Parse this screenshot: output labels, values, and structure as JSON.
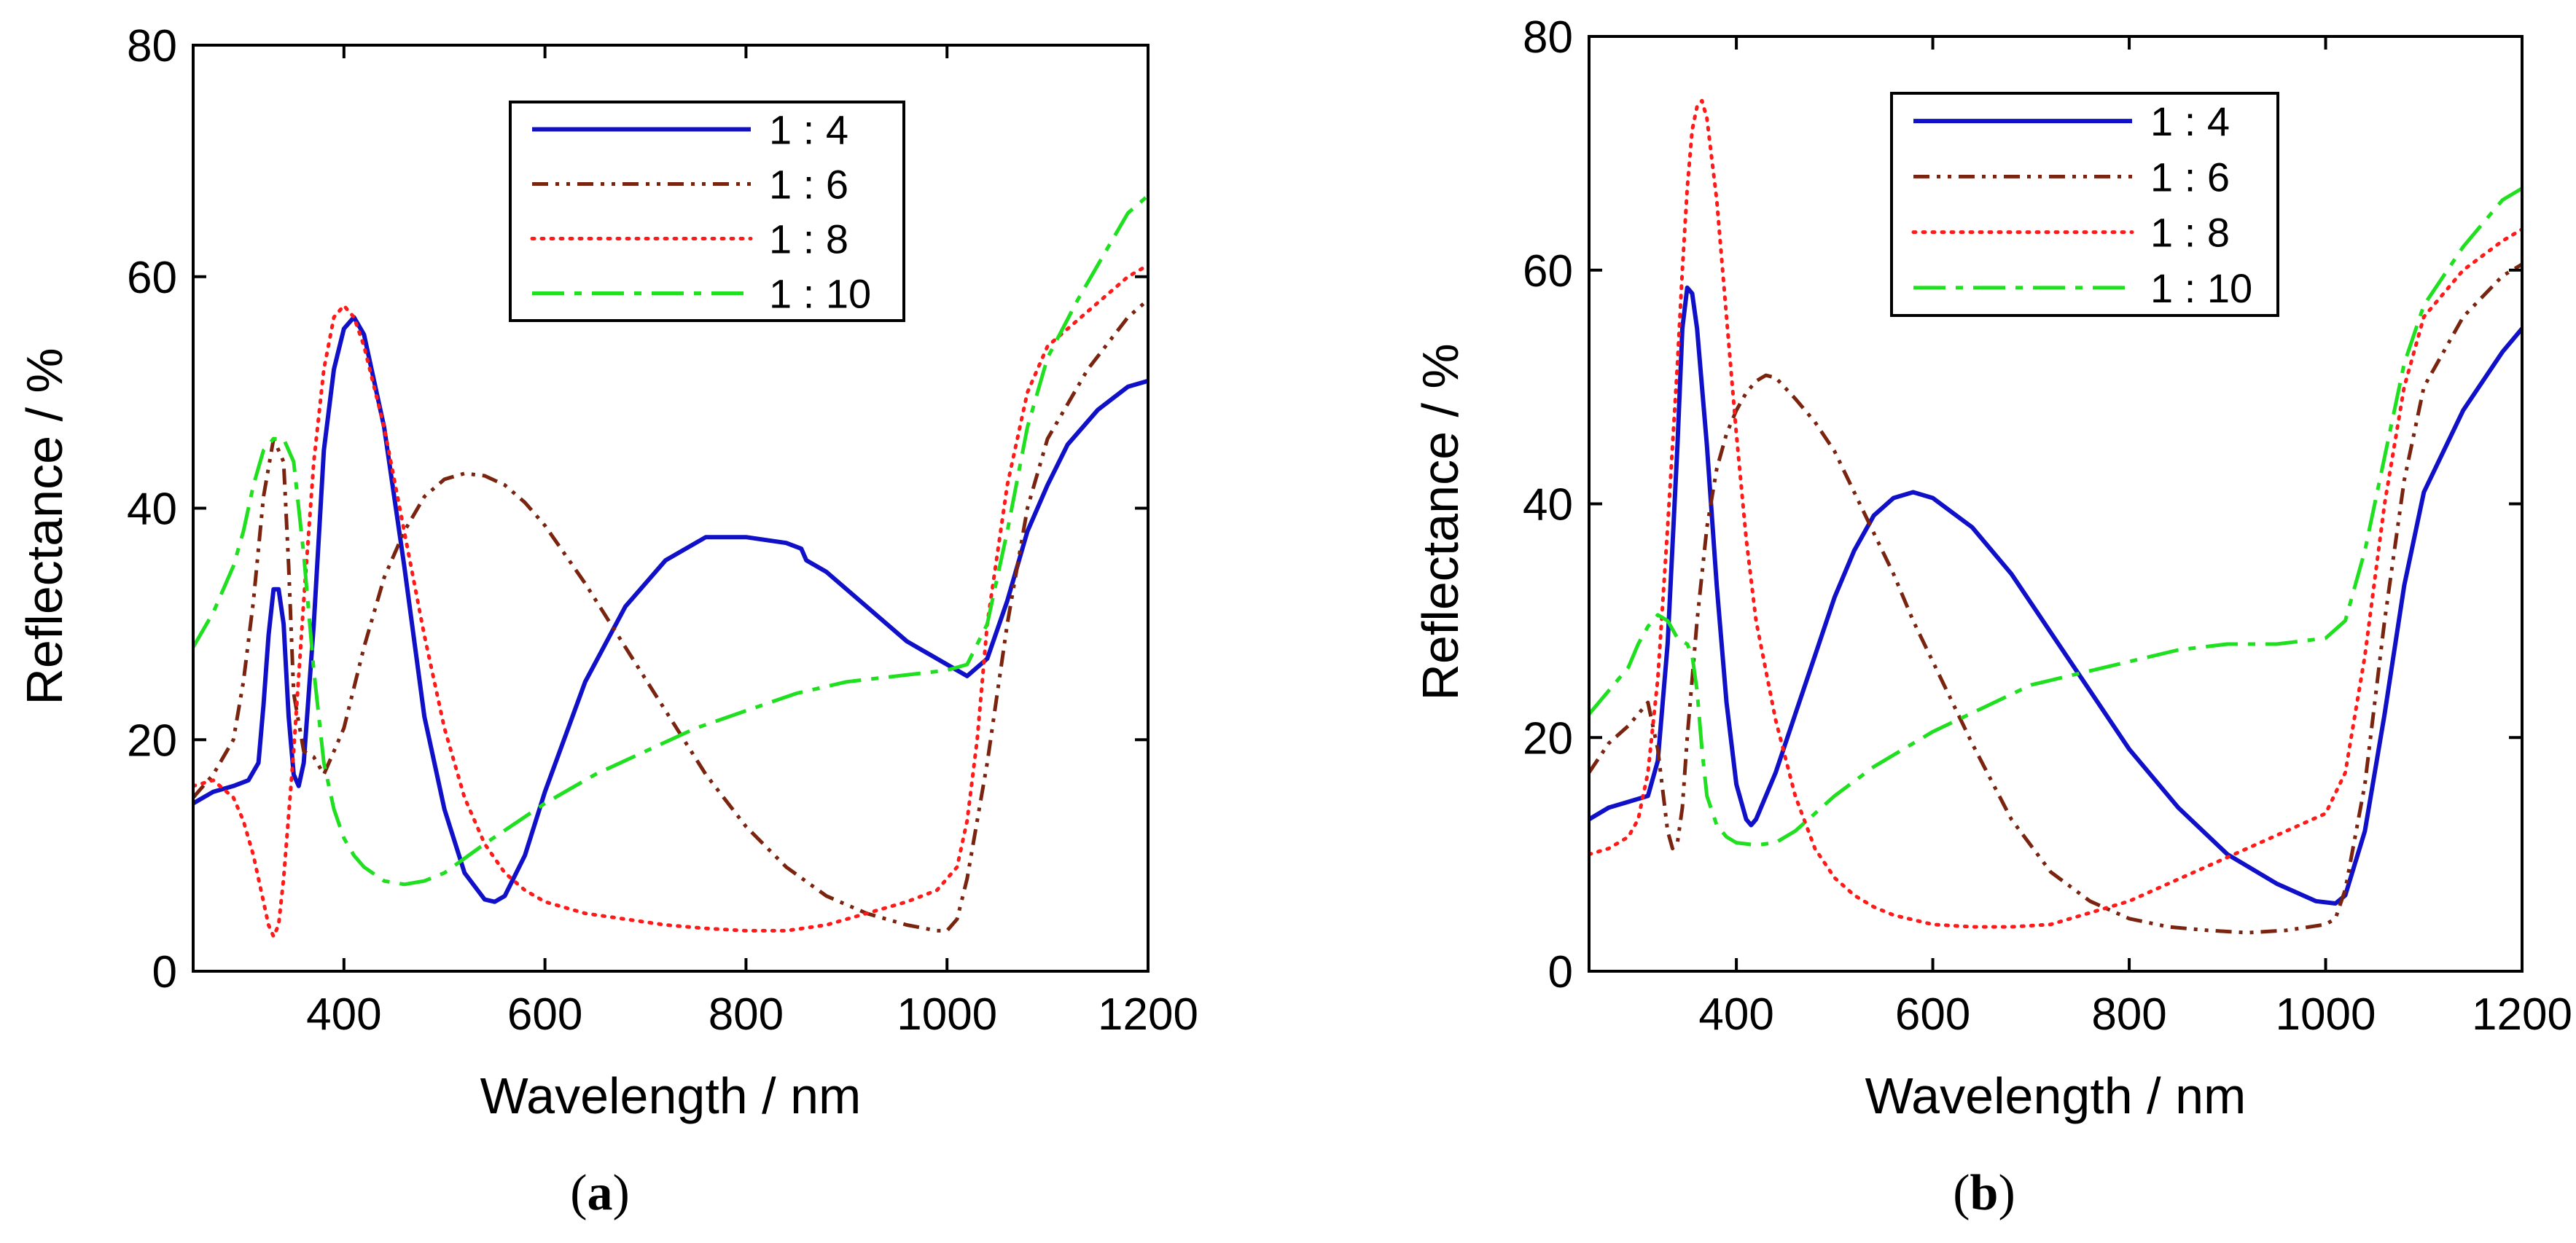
{
  "figure": {
    "panels": [
      {
        "label_prefix": "(",
        "label_letter": "a",
        "label_suffix": ")"
      },
      {
        "label_prefix": "(",
        "label_letter": "b",
        "label_suffix": ")"
      }
    ]
  },
  "chart_data": [
    {
      "type": "line",
      "panel": "a",
      "title": "",
      "xlabel": "Wavelength / nm",
      "ylabel": "Reflectance / %",
      "xlim": [
        250,
        1200
      ],
      "ylim": [
        0,
        80
      ],
      "xticks": [
        400,
        600,
        800,
        1000,
        1200
      ],
      "yticks": [
        0,
        20,
        40,
        60,
        80
      ],
      "grid": false,
      "legend_position": "top-right",
      "series": [
        {
          "name": "1 : 4",
          "color": "#1010c8",
          "dash": "solid",
          "x": [
            250,
            270,
            290,
            305,
            315,
            320,
            325,
            330,
            335,
            340,
            345,
            350,
            355,
            360,
            370,
            380,
            390,
            400,
            410,
            420,
            440,
            460,
            480,
            500,
            520,
            540,
            550,
            560,
            580,
            600,
            640,
            680,
            720,
            760,
            800,
            840,
            855,
            860,
            880,
            920,
            960,
            1000,
            1020,
            1040,
            1060,
            1080,
            1100,
            1120,
            1150,
            1180,
            1200
          ],
          "y": [
            14.5,
            15.5,
            16,
            16.5,
            18,
            23,
            29,
            33,
            33,
            30,
            22,
            17,
            16,
            18,
            30,
            45,
            52,
            55.5,
            56.5,
            55,
            47,
            35,
            22,
            14,
            8.5,
            6.2,
            6,
            6.5,
            10,
            15.5,
            25,
            31.5,
            35.5,
            37.5,
            37.5,
            37,
            36.5,
            35.5,
            34.5,
            31.5,
            28.5,
            26.5,
            25.5,
            27,
            32,
            38,
            42,
            45.5,
            48.5,
            50.5,
            51
          ]
        },
        {
          "name": "1 : 6",
          "color": "#7a2410",
          "dash": "dashdotdot",
          "x": [
            250,
            270,
            290,
            300,
            310,
            320,
            330,
            340,
            345,
            350,
            360,
            370,
            380,
            390,
            400,
            420,
            440,
            460,
            480,
            500,
            520,
            540,
            560,
            580,
            600,
            640,
            680,
            720,
            760,
            800,
            840,
            880,
            920,
            960,
            990,
            1000,
            1010,
            1020,
            1040,
            1060,
            1080,
            1100,
            1140,
            1180,
            1200
          ],
          "y": [
            15,
            17,
            20,
            25,
            32,
            41,
            46,
            44,
            35,
            24,
            19,
            18.5,
            17,
            19,
            21,
            28,
            34,
            38,
            41,
            42.5,
            43,
            42.8,
            42,
            40.5,
            38.5,
            33.5,
            28,
            22.5,
            17,
            12.5,
            9,
            6.5,
            5,
            4,
            3.5,
            3.5,
            4.5,
            8,
            18,
            30,
            40,
            46,
            52,
            56.5,
            58
          ]
        },
        {
          "name": "1 : 8",
          "color": "#ff1a1a",
          "dash": "dotted",
          "x": [
            250,
            270,
            290,
            300,
            310,
            320,
            325,
            330,
            335,
            340,
            350,
            360,
            370,
            380,
            390,
            400,
            410,
            420,
            440,
            460,
            480,
            500,
            520,
            540,
            560,
            580,
            600,
            640,
            680,
            720,
            760,
            800,
            840,
            880,
            920,
            960,
            990,
            1010,
            1020,
            1030,
            1040,
            1060,
            1080,
            1100,
            1140,
            1180,
            1200
          ],
          "y": [
            16,
            16.5,
            15,
            13,
            10,
            6,
            4,
            3,
            4,
            8,
            19,
            32,
            44,
            52,
            56.5,
            57.5,
            56.5,
            54,
            47,
            38,
            29,
            21,
            15,
            11,
            8.5,
            7,
            6,
            5,
            4.5,
            4,
            3.7,
            3.5,
            3.5,
            4,
            5,
            6,
            7,
            9,
            13,
            20,
            30,
            42,
            50,
            54,
            57,
            60,
            61
          ]
        },
        {
          "name": "1 : 10",
          "color": "#1ee01e",
          "dash": "dashdot",
          "x": [
            250,
            270,
            290,
            300,
            310,
            320,
            330,
            340,
            350,
            360,
            370,
            380,
            390,
            400,
            410,
            420,
            440,
            460,
            480,
            500,
            540,
            600,
            650,
            700,
            750,
            800,
            850,
            900,
            950,
            1000,
            1020,
            1040,
            1060,
            1080,
            1100,
            1130,
            1160,
            1180,
            1200
          ],
          "y": [
            28,
            31,
            35,
            38,
            42,
            45,
            46,
            46,
            44,
            36,
            26,
            18,
            14,
            11.5,
            10,
            9,
            7.8,
            7.5,
            7.8,
            8.5,
            11,
            14.5,
            17,
            19,
            21,
            22.5,
            24,
            25,
            25.5,
            26,
            26.5,
            30,
            38,
            47,
            53,
            58,
            62.5,
            65.5,
            67
          ]
        }
      ]
    },
    {
      "type": "line",
      "panel": "b",
      "title": "",
      "xlabel": "Wavelength / nm",
      "ylabel": "Reflectance / %",
      "xlim": [
        250,
        1200
      ],
      "ylim": [
        0,
        80
      ],
      "xticks": [
        400,
        600,
        800,
        1000,
        1200
      ],
      "yticks": [
        0,
        20,
        40,
        60,
        80
      ],
      "grid": false,
      "legend_position": "top-right",
      "series": [
        {
          "name": "1 : 4",
          "color": "#1010c8",
          "dash": "solid",
          "x": [
            250,
            270,
            290,
            310,
            320,
            330,
            340,
            345,
            350,
            355,
            360,
            370,
            380,
            390,
            400,
            410,
            415,
            420,
            440,
            460,
            480,
            500,
            520,
            540,
            560,
            580,
            600,
            640,
            680,
            720,
            760,
            800,
            850,
            900,
            950,
            990,
            1010,
            1020,
            1040,
            1060,
            1080,
            1100,
            1140,
            1180,
            1200
          ],
          "y": [
            13,
            14,
            14.5,
            15,
            18,
            28,
            45,
            55,
            58.5,
            58,
            55,
            45,
            33,
            23,
            16,
            13,
            12.5,
            13,
            17,
            22,
            27,
            32,
            36,
            39,
            40.5,
            41,
            40.5,
            38,
            34,
            29,
            24,
            19,
            14,
            10,
            7.5,
            6,
            5.8,
            6.5,
            12,
            22,
            33,
            41,
            48,
            53,
            55
          ]
        },
        {
          "name": "1 : 6",
          "color": "#7a2410",
          "dash": "dashdotdot",
          "x": [
            250,
            270,
            290,
            300,
            310,
            320,
            330,
            335,
            340,
            345,
            350,
            360,
            370,
            380,
            390,
            400,
            410,
            420,
            430,
            440,
            460,
            480,
            500,
            520,
            540,
            560,
            580,
            600,
            640,
            680,
            720,
            760,
            800,
            840,
            880,
            920,
            960,
            1000,
            1010,
            1020,
            1040,
            1060,
            1080,
            1100,
            1140,
            1180,
            1200
          ],
          "y": [
            17,
            19.5,
            21,
            22,
            23,
            19,
            12,
            10.5,
            11,
            14,
            20,
            30,
            38,
            43,
            46,
            48,
            49.5,
            50.5,
            51,
            50.8,
            49,
            47,
            44.5,
            41,
            37.5,
            34,
            30,
            26.5,
            19.5,
            13,
            8.5,
            6,
            4.5,
            3.8,
            3.5,
            3.3,
            3.5,
            4,
            4.5,
            7,
            16,
            30,
            42,
            50,
            56,
            59.5,
            60.5
          ]
        },
        {
          "name": "1 : 8",
          "color": "#ff1a1a",
          "dash": "dotted",
          "x": [
            250,
            270,
            290,
            300,
            310,
            320,
            330,
            340,
            345,
            350,
            355,
            360,
            365,
            370,
            380,
            390,
            400,
            410,
            420,
            440,
            460,
            480,
            500,
            520,
            540,
            560,
            600,
            640,
            680,
            720,
            760,
            800,
            840,
            880,
            920,
            960,
            1000,
            1020,
            1040,
            1060,
            1080,
            1100,
            1140,
            1180,
            1200
          ],
          "y": [
            10,
            10.5,
            11.5,
            13,
            17,
            25,
            38,
            52,
            60,
            67,
            72,
            74,
            74.5,
            73,
            66,
            56,
            46,
            37,
            30,
            21.5,
            15,
            10.5,
            8,
            6.5,
            5.5,
            4.8,
            4,
            3.8,
            3.8,
            4,
            5,
            6,
            7.5,
            9,
            10.5,
            12,
            13.5,
            17,
            27,
            40,
            50,
            56,
            60,
            62.5,
            63.5
          ]
        },
        {
          "name": "1 : 10",
          "color": "#1ee01e",
          "dash": "dashdot",
          "x": [
            250,
            270,
            290,
            300,
            310,
            320,
            330,
            340,
            350,
            355,
            360,
            365,
            370,
            380,
            390,
            400,
            420,
            440,
            460,
            480,
            500,
            540,
            600,
            650,
            700,
            750,
            800,
            850,
            900,
            950,
            1000,
            1020,
            1040,
            1060,
            1080,
            1100,
            1140,
            1180,
            1200
          ],
          "y": [
            22,
            24,
            26,
            28,
            29.5,
            30.5,
            30,
            28.5,
            28,
            27,
            24,
            19,
            15,
            12.5,
            11.5,
            11,
            10.8,
            11,
            12,
            13.5,
            15,
            17.5,
            20.5,
            22.5,
            24.5,
            25.5,
            26.5,
            27.5,
            28,
            28,
            28.5,
            30,
            36,
            44,
            52,
            57,
            62,
            66,
            67
          ]
        }
      ]
    }
  ]
}
